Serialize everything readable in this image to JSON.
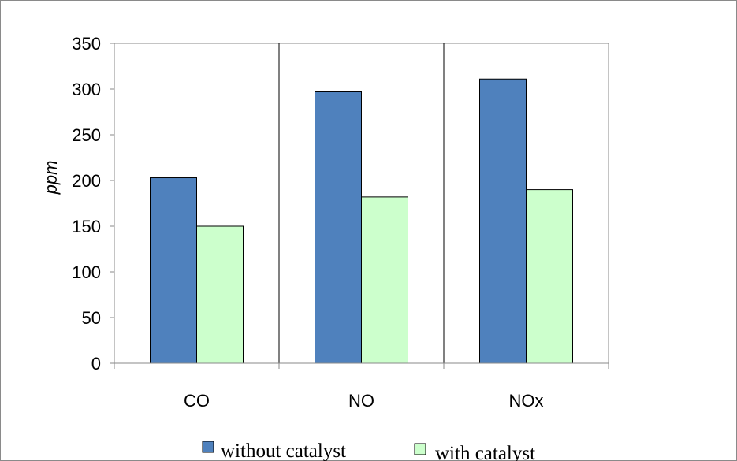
{
  "chart_data": {
    "type": "bar",
    "title": "",
    "xlabel": "",
    "ylabel": "ppm",
    "categories": [
      "CO",
      "NO",
      "NOx"
    ],
    "ylim": [
      0,
      350
    ],
    "yticks": [
      0,
      50,
      100,
      150,
      200,
      250,
      300,
      350
    ],
    "grid": "vertical category separators only",
    "legend_position": "bottom",
    "series": [
      {
        "name": "without catalyst",
        "values": [
          203,
          297,
          311
        ],
        "color": "#4f81bd"
      },
      {
        "name": "with catalyst",
        "values": [
          150,
          182,
          190
        ],
        "color": "#ccffcc"
      }
    ]
  }
}
